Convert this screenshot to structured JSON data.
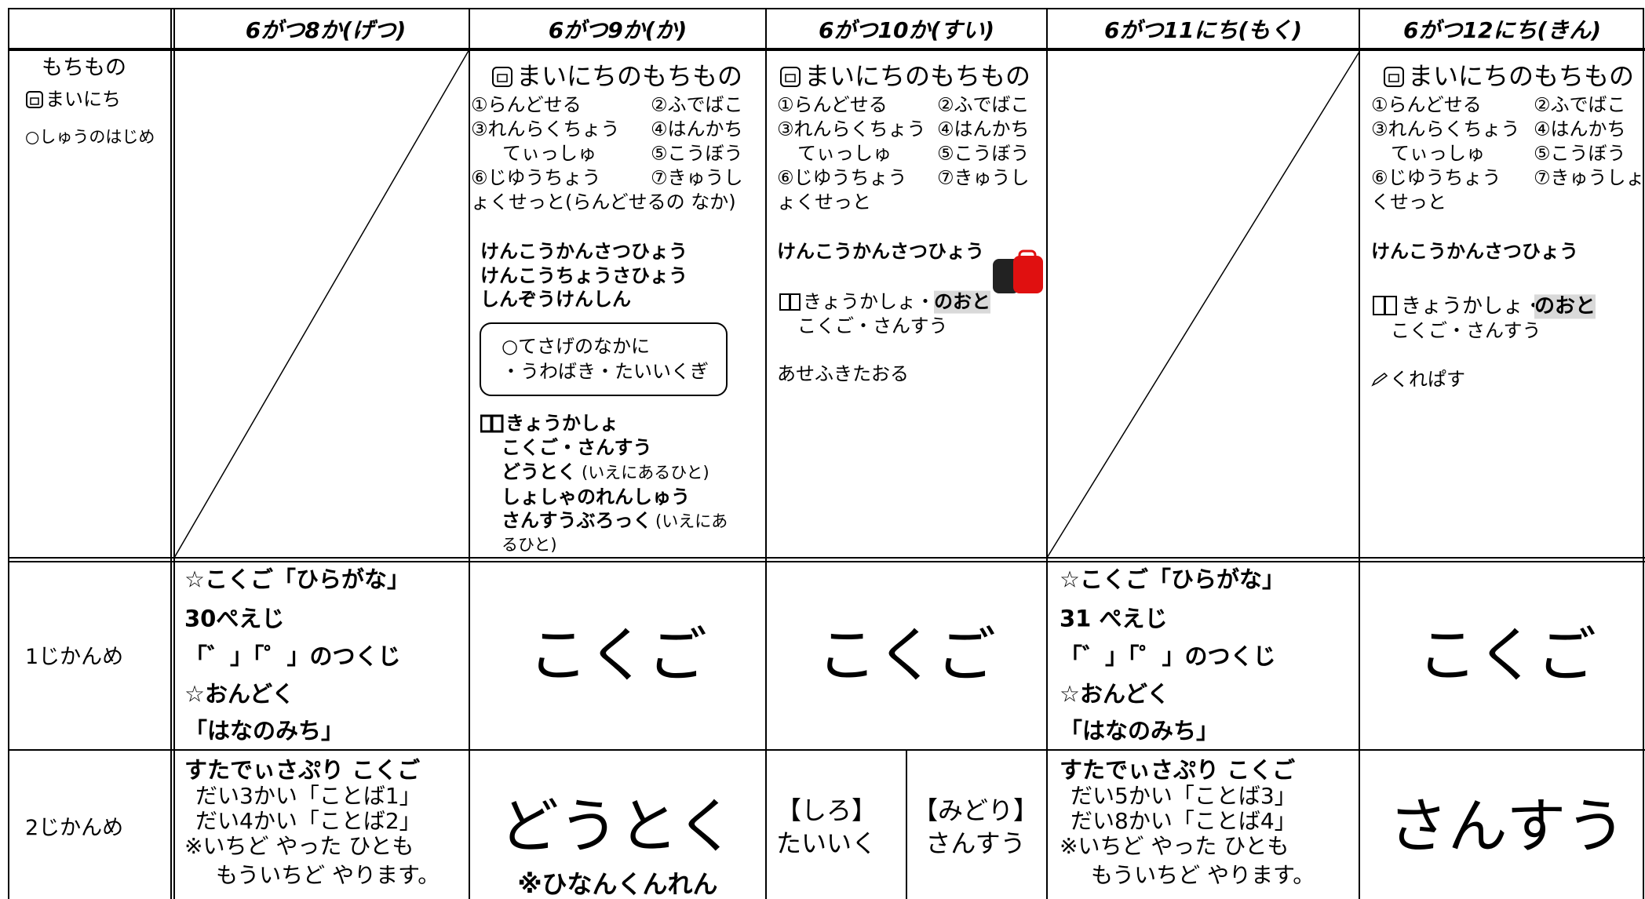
{
  "header": {
    "days": [
      "6がつ8か(げつ)",
      "6がつ9か(か)",
      "6がつ10か(すい)",
      "6がつ11にち(もく)",
      "6がつ12にち(きん)"
    ]
  },
  "belongings": {
    "label": [
      "もちもの",
      "まいにち",
      "○しゅうのはじめ"
    ],
    "tuesday": {
      "title": "まいにちのもちもの",
      "items": [
        [
          "①らんどせる",
          "②ふでばこ"
        ],
        [
          "③れんらくちょう",
          "④はんかち"
        ],
        [
          "てぃっしゅ",
          "⑤こうぼう"
        ],
        [
          "⑥じゆうちょう",
          "⑦きゅうし"
        ],
        [
          "ょくせっと(らんどせるの なか)"
        ]
      ],
      "forms": [
        "けんこうかんさつひょう",
        "けんこうちょうさひょう",
        "しんぞうけんしん"
      ],
      "bag_note": [
        "○てさげのなかに",
        "・うわばき・たいいくぎ"
      ],
      "textbooks": [
        "きょうかしょ",
        "こくご・さんすう",
        "どうとく",
        "(いえにあるひと)",
        "しょしゃのれんしゅう",
        "さんすうぶろっく",
        "(いえにあ",
        "るひと)"
      ]
    },
    "wednesday": {
      "title": "まいにちのもちもの",
      "items": [
        [
          "①らんどせる",
          "②ふでばこ"
        ],
        [
          "③れんらくちょう",
          "④はんかち"
        ],
        [
          "てぃっしゅ",
          "⑤こうぼう"
        ],
        [
          "⑥じゆうちょう",
          "⑦きゅうし"
        ],
        [
          "ょくせっと"
        ]
      ],
      "forms": [
        "けんこうかんさつひょう"
      ],
      "textbooks": [
        "きょうかしょ・",
        "のおと",
        "こくご・さんすう"
      ],
      "other": "あせふきたおる"
    },
    "friday": {
      "title": "まいにちのもちもの",
      "items": [
        [
          "①らんどせる",
          "②ふでばこ"
        ],
        [
          "③れんらくちょう",
          "④はんかち"
        ],
        [
          "てぃっしゅ",
          "⑤こうぼう"
        ],
        [
          "⑥じゆうちょう",
          "⑦きゅうしょ"
        ],
        [
          "くせっと"
        ]
      ],
      "forms": [
        "けんこうかんさつひょう"
      ],
      "textbooks": [
        "きょうかしょ・",
        "のおと",
        "こくご・さんすう"
      ],
      "other": "くれぱす"
    }
  },
  "period1": {
    "label": "1じかんめ",
    "monday": [
      "☆こくご「ひらがな」",
      "30ぺえじ",
      "「゛」「゜」のつくじ",
      "☆おんどく",
      "「はなのみち」"
    ],
    "tuesday": "こくご",
    "wednesday": "こくご",
    "thursday": [
      "☆こくご「ひらがな」",
      "31 ぺえじ",
      "「゛」「゜」のつくじ",
      "☆おんどく",
      "「はなのみち」"
    ],
    "friday": "こくご"
  },
  "period2": {
    "label": "2じかんめ",
    "monday": [
      "すたでぃさぷり こくご",
      "だい3かい「ことば1」",
      "だい4かい「ことば2」",
      "※いちど やった ひとも",
      "もういちど やります。"
    ],
    "tuesday": [
      "どうとく",
      "※ひなんくんれん"
    ],
    "wednesday": [
      [
        "【しろ】",
        "たいいく"
      ],
      [
        "【みどり】",
        "さんすう"
      ]
    ],
    "thursday": [
      "すたでぃさぷり こくご",
      "だい5かい「ことば3」",
      "だい8かい「ことば4」",
      "※いちど やった ひとも",
      "もういちど やります。"
    ],
    "friday": "さんすう"
  }
}
